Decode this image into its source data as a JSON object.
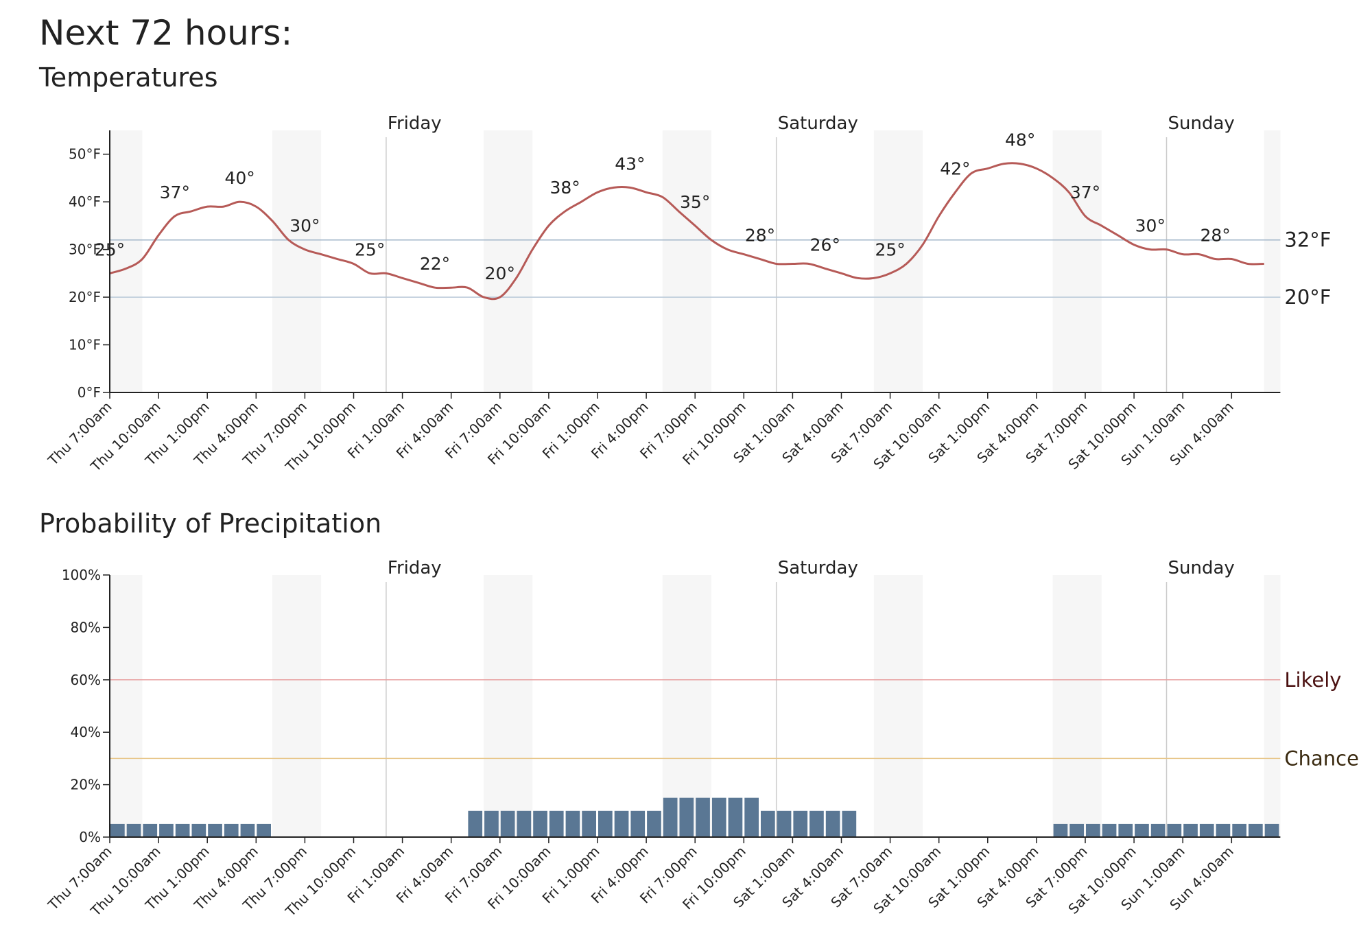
{
  "heading": "Next 72 hours:",
  "chart_data": [
    {
      "type": "line",
      "title": "Temperatures",
      "color": "#b65a57",
      "categories": [
        "Thu 7:00am",
        null,
        null,
        "Thu 10:00am",
        null,
        null,
        "Thu 1:00pm",
        null,
        null,
        "Thu 4:00pm",
        null,
        null,
        "Thu 7:00pm",
        null,
        null,
        "Thu 10:00pm",
        null,
        null,
        "Fri 1:00am",
        null,
        null,
        "Fri 4:00am",
        null,
        null,
        "Fri 7:00am",
        null,
        null,
        "Fri 10:00am",
        null,
        null,
        "Fri 1:00pm",
        null,
        null,
        "Fri 4:00pm",
        null,
        null,
        "Fri 7:00pm",
        null,
        null,
        "Fri 10:00pm",
        null,
        null,
        "Sat 1:00am",
        null,
        null,
        "Sat 4:00am",
        null,
        null,
        "Sat 7:00am",
        null,
        null,
        "Sat 10:00am",
        null,
        null,
        "Sat 1:00pm",
        null,
        null,
        "Sat 4:00pm",
        null,
        null,
        "Sat 7:00pm",
        null,
        null,
        "Sat 10:00pm",
        null,
        null,
        "Sun 1:00am",
        null,
        null,
        "Sun 4:00am",
        null,
        null
      ],
      "values": [
        25,
        26,
        28,
        33,
        37,
        38,
        39,
        39,
        40,
        39,
        36,
        32,
        30,
        29,
        28,
        27,
        25,
        25,
        24,
        23,
        22,
        22,
        22,
        20,
        20,
        24,
        30,
        35,
        38,
        40,
        42,
        43,
        43,
        42,
        41,
        38,
        35,
        32,
        30,
        29,
        28,
        27,
        27,
        27,
        26,
        25,
        24,
        24,
        25,
        27,
        31,
        37,
        42,
        46,
        47,
        48,
        48,
        47,
        45,
        42,
        37,
        35,
        33,
        31,
        30,
        30,
        29,
        29,
        28,
        28,
        27,
        27
      ],
      "value_labels": [
        "25°",
        null,
        null,
        null,
        "37°",
        null,
        null,
        null,
        "40°",
        null,
        null,
        null,
        "30°",
        null,
        null,
        null,
        "25°",
        null,
        null,
        null,
        "22°",
        null,
        null,
        null,
        "20°",
        null,
        null,
        null,
        "38°",
        null,
        null,
        null,
        "43°",
        null,
        null,
        null,
        "35°",
        null,
        null,
        null,
        "28°",
        null,
        null,
        null,
        "26°",
        null,
        null,
        null,
        "25°",
        null,
        null,
        null,
        "42°",
        null,
        null,
        null,
        "48°",
        null,
        null,
        null,
        "37°",
        null,
        null,
        null,
        "30°",
        null,
        null,
        null,
        "28°",
        null,
        null,
        null
      ],
      "ylim": [
        0,
        55
      ],
      "yticks": [
        {
          "value": 0,
          "label": "0°F"
        },
        {
          "value": 10,
          "label": "10°F"
        },
        {
          "value": 20,
          "label": "20°F"
        },
        {
          "value": 30,
          "label": "30°F"
        },
        {
          "value": 40,
          "label": "40°F"
        },
        {
          "value": 50,
          "label": "50°F"
        }
      ],
      "reference_lines": [
        {
          "value": 32,
          "label": "32°F",
          "color": "#9fb3c8",
          "label_color": "#222222"
        },
        {
          "value": 20,
          "label": "20°F",
          "color": "#b8c8d8",
          "label_color": "#222222"
        }
      ],
      "day_markers": [
        {
          "at": 17,
          "label": "Friday"
        },
        {
          "at": 41,
          "label": "Saturday"
        },
        {
          "at": 65,
          "label": "Sunday"
        }
      ]
    },
    {
      "type": "bar",
      "title": "Probability of Precipitation",
      "color": "#5a7794",
      "categories": [
        "Thu 7:00am",
        null,
        null,
        "Thu 10:00am",
        null,
        null,
        "Thu 1:00pm",
        null,
        null,
        "Thu 4:00pm",
        null,
        null,
        "Thu 7:00pm",
        null,
        null,
        "Thu 10:00pm",
        null,
        null,
        "Fri 1:00am",
        null,
        null,
        "Fri 4:00am",
        null,
        null,
        "Fri 7:00am",
        null,
        null,
        "Fri 10:00am",
        null,
        null,
        "Fri 1:00pm",
        null,
        null,
        "Fri 4:00pm",
        null,
        null,
        "Fri 7:00pm",
        null,
        null,
        "Fri 10:00pm",
        null,
        null,
        "Sat 1:00am",
        null,
        null,
        "Sat 4:00am",
        null,
        null,
        "Sat 7:00am",
        null,
        null,
        "Sat 10:00am",
        null,
        null,
        "Sat 1:00pm",
        null,
        null,
        "Sat 4:00pm",
        null,
        null,
        "Sat 7:00pm",
        null,
        null,
        "Sat 10:00pm",
        null,
        null,
        "Sun 1:00am",
        null,
        null,
        "Sun 4:00am",
        null,
        null
      ],
      "values": [
        5,
        5,
        5,
        5,
        5,
        5,
        5,
        5,
        5,
        5,
        0,
        0,
        0,
        0,
        0,
        0,
        0,
        0,
        0,
        0,
        0,
        0,
        10,
        10,
        10,
        10,
        10,
        10,
        10,
        10,
        10,
        10,
        10,
        10,
        15,
        15,
        15,
        15,
        15,
        15,
        10,
        10,
        10,
        10,
        10,
        10,
        0,
        0,
        0,
        0,
        0,
        0,
        0,
        0,
        0,
        0,
        0,
        0,
        5,
        5,
        5,
        5,
        5,
        5,
        5,
        5,
        5,
        5,
        5,
        5,
        5,
        5
      ],
      "ylim": [
        0,
        100
      ],
      "yticks": [
        {
          "value": 0,
          "label": "0%"
        },
        {
          "value": 20,
          "label": "20%"
        },
        {
          "value": 40,
          "label": "40%"
        },
        {
          "value": 60,
          "label": "60%"
        },
        {
          "value": 80,
          "label": "80%"
        },
        {
          "value": 100,
          "label": "100%"
        }
      ],
      "reference_lines": [
        {
          "value": 60,
          "label": "Likely",
          "color": "#e8a0a0",
          "label_color": "#4a1010"
        },
        {
          "value": 30,
          "label": "Chance",
          "color": "#e8c68a",
          "label_color": "#3a2a10"
        }
      ],
      "day_markers": [
        {
          "at": 17,
          "label": "Friday"
        },
        {
          "at": 41,
          "label": "Saturday"
        },
        {
          "at": 65,
          "label": "Sunday"
        }
      ]
    }
  ]
}
